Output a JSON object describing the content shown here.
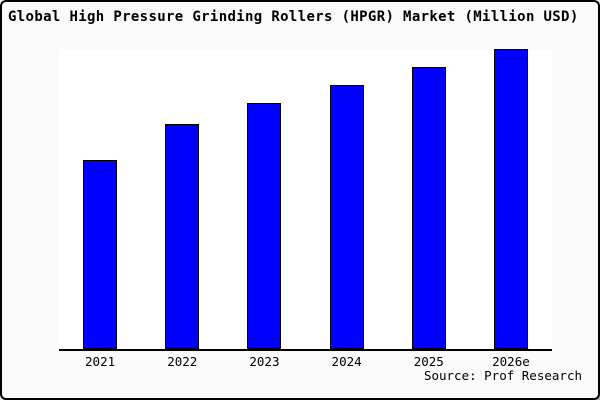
{
  "window": {
    "background_color": "#fafafa",
    "border_color": "#000000",
    "plot_background_color": "#ffffff"
  },
  "header": {
    "title": "Global High Pressure Grinding Rollers (HPGR) Market (Million USD)"
  },
  "footer": {
    "source_label": "Source: Prof Research"
  },
  "chart_data": {
    "type": "bar",
    "title": "Global High Pressure Grinding Rollers (HPGR) Market (Million USD)",
    "categories": [
      "2021",
      "2022",
      "2023",
      "2024",
      "2025",
      "2026e"
    ],
    "values": [
      63,
      75,
      82,
      88,
      94,
      100
    ],
    "values_note": "No y-axis ticks or gridlines shown; values estimated from bar heights as percent of the tallest (2026e) bar",
    "xlabel": "",
    "ylabel": "",
    "ylim": [
      0,
      100
    ],
    "grid": false,
    "legend": false,
    "bar_color": "#0000ff",
    "bar_border_color": "#000000"
  }
}
